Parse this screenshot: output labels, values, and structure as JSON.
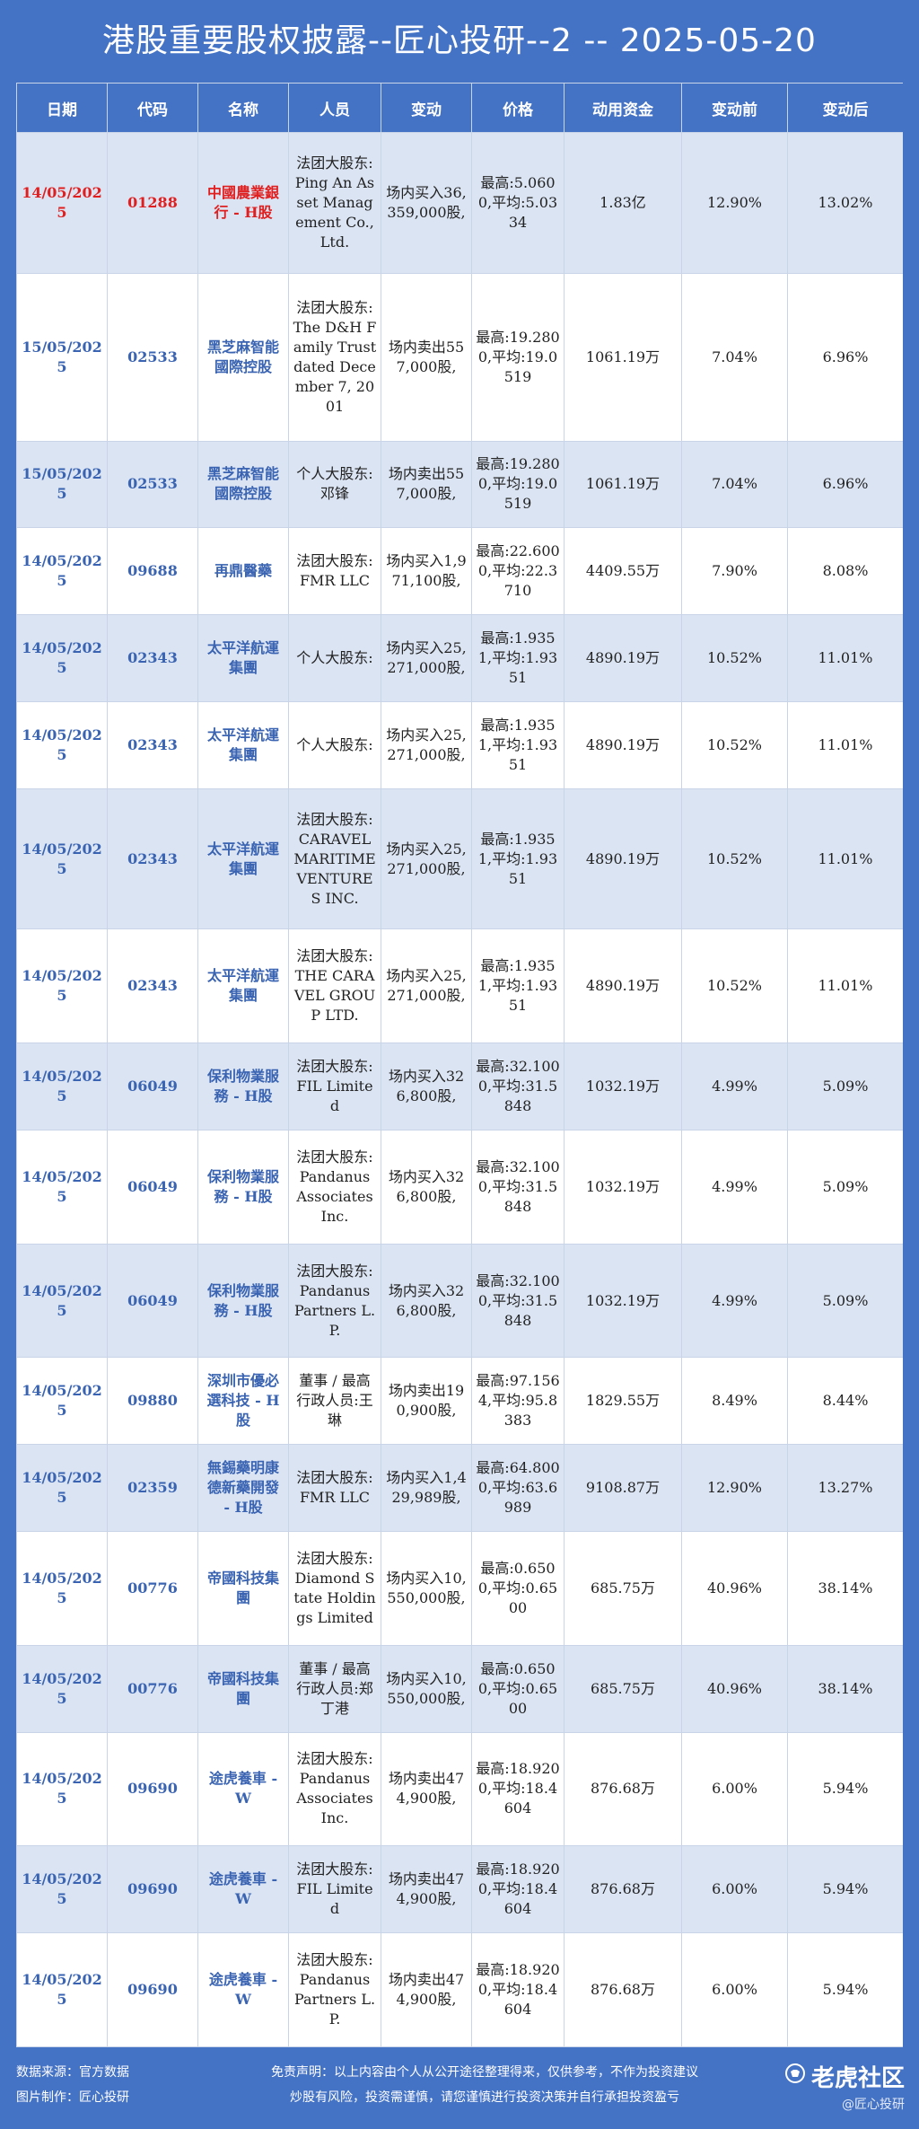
{
  "title": "港股重要股权披露--匠心投研--2 -- 2025-05-20",
  "headers": [
    "日期",
    "代码",
    "名称",
    "人员",
    "变动",
    "价格",
    "动用资金",
    "变动前",
    "变动后"
  ],
  "rows": [
    {
      "date": "14/05/2025",
      "code": "01288",
      "name": "中國農業銀行 - H股",
      "person": "法团大股东:Ping An Asset Management Co., Ltd.",
      "change": "场内买入36,359,000股,",
      "price": "最高:5.0600,平均:5.0334",
      "funds": "1.83亿",
      "before": "12.90%",
      "after": "13.02%",
      "highlight": true
    },
    {
      "date": "15/05/2025",
      "code": "02533",
      "name": "黑芝麻智能國際控股",
      "person": "法团大股东:The D&H Family Trust dated December 7, 2001",
      "change": "场内卖出557,000股,",
      "price": "最高:19.2800,平均:19.0519",
      "funds": "1061.19万",
      "before": "7.04%",
      "after": "6.96%"
    },
    {
      "date": "15/05/2025",
      "code": "02533",
      "name": "黑芝麻智能國際控股",
      "person": "个人大股东:邓锋",
      "change": "场内卖出557,000股,",
      "price": "最高:19.2800,平均:19.0519",
      "funds": "1061.19万",
      "before": "7.04%",
      "after": "6.96%"
    },
    {
      "date": "14/05/2025",
      "code": "09688",
      "name": "再鼎醫藥",
      "person": "法团大股东:FMR LLC",
      "change": "场内买入1,971,100股,",
      "price": "最高:22.6000,平均:22.3710",
      "funds": "4409.55万",
      "before": "7.90%",
      "after": "8.08%"
    },
    {
      "date": "14/05/2025",
      "code": "02343",
      "name": "太平洋航運集團",
      "person": "个人大股东:",
      "change": "场内买入25,271,000股,",
      "price": "最高:1.9351,平均:1.9351",
      "funds": "4890.19万",
      "before": "10.52%",
      "after": "11.01%"
    },
    {
      "date": "14/05/2025",
      "code": "02343",
      "name": "太平洋航運集團",
      "person": "个人大股东:",
      "change": "场内买入25,271,000股,",
      "price": "最高:1.9351,平均:1.9351",
      "funds": "4890.19万",
      "before": "10.52%",
      "after": "11.01%"
    },
    {
      "date": "14/05/2025",
      "code": "02343",
      "name": "太平洋航運集團",
      "person": "法团大股东:CARAVEL MARITIME VENTURES INC.",
      "change": "场内买入25,271,000股,",
      "price": "最高:1.9351,平均:1.9351",
      "funds": "4890.19万",
      "before": "10.52%",
      "after": "11.01%"
    },
    {
      "date": "14/05/2025",
      "code": "02343",
      "name": "太平洋航運集團",
      "person": "法团大股东:THE CARAVEL GROUP LTD.",
      "change": "场内买入25,271,000股,",
      "price": "最高:1.9351,平均:1.9351",
      "funds": "4890.19万",
      "before": "10.52%",
      "after": "11.01%"
    },
    {
      "date": "14/05/2025",
      "code": "06049",
      "name": "保利物業服務 - H股",
      "person": "法团大股东:FIL Limited",
      "change": "场内买入326,800股,",
      "price": "最高:32.1000,平均:31.5848",
      "funds": "1032.19万",
      "before": "4.99%",
      "after": "5.09%"
    },
    {
      "date": "14/05/2025",
      "code": "06049",
      "name": "保利物業服務 - H股",
      "person": "法团大股东:Pandanus Associates Inc.",
      "change": "场内买入326,800股,",
      "price": "最高:32.1000,平均:31.5848",
      "funds": "1032.19万",
      "before": "4.99%",
      "after": "5.09%"
    },
    {
      "date": "14/05/2025",
      "code": "06049",
      "name": "保利物業服務 - H股",
      "person": "法团大股东:Pandanus Partners L.P.",
      "change": "场内买入326,800股,",
      "price": "最高:32.1000,平均:31.5848",
      "funds": "1032.19万",
      "before": "4.99%",
      "after": "5.09%"
    },
    {
      "date": "14/05/2025",
      "code": "09880",
      "name": "深圳市優必選科技 - H股",
      "person": "董事 / 最高行政人员:王琳",
      "change": "场内卖出190,900股,",
      "price": "最高:97.1564,平均:95.8383",
      "funds": "1829.55万",
      "before": "8.49%",
      "after": "8.44%"
    },
    {
      "date": "14/05/2025",
      "code": "02359",
      "name": "無錫藥明康德新藥開發 - H股",
      "person": "法团大股东:FMR LLC",
      "change": "场内买入1,429,989股,",
      "price": "最高:64.8000,平均:63.6989",
      "funds": "9108.87万",
      "before": "12.90%",
      "after": "13.27%"
    },
    {
      "date": "14/05/2025",
      "code": "00776",
      "name": "帝國科技集團",
      "person": "法团大股东:Diamond State Holdings Limited",
      "change": "场内买入10,550,000股,",
      "price": "最高:0.6500,平均:0.6500",
      "funds": "685.75万",
      "before": "40.96%",
      "after": "38.14%"
    },
    {
      "date": "14/05/2025",
      "code": "00776",
      "name": "帝國科技集團",
      "person": "董事 / 最高行政人员:郑丁港",
      "change": "场内买入10,550,000股,",
      "price": "最高:0.6500,平均:0.6500",
      "funds": "685.75万",
      "before": "40.96%",
      "after": "38.14%"
    },
    {
      "date": "14/05/2025",
      "code": "09690",
      "name": "途虎養車 - W",
      "person": "法团大股东:Pandanus Associates Inc.",
      "change": "场内卖出474,900股,",
      "price": "最高:18.9200,平均:18.4604",
      "funds": "876.68万",
      "before": "6.00%",
      "after": "5.94%"
    },
    {
      "date": "14/05/2025",
      "code": "09690",
      "name": "途虎養車 - W",
      "person": "法团大股东:FIL Limited",
      "change": "场内卖出474,900股,",
      "price": "最高:18.9200,平均:18.4604",
      "funds": "876.68万",
      "before": "6.00%",
      "after": "5.94%"
    },
    {
      "date": "14/05/2025",
      "code": "09690",
      "name": "途虎養車 - W",
      "person": "法团大股东:Pandanus Partners L.P.",
      "change": "场内卖出474,900股,",
      "price": "最高:18.9200,平均:18.4604",
      "funds": "876.68万",
      "before": "6.00%",
      "after": "5.94%"
    }
  ],
  "footer": {
    "source": "数据来源：官方数据",
    "maker": "图片制作：匠心投研",
    "disclaimer1": "免责声明：以上内容由个人从公开途径整理得来，仅供参考，不作为投资建议",
    "disclaimer2": "炒股有风险，投资需谨慎，请您谨慎进行投资决策并自行承担投资盈亏",
    "brand": "老虎社区",
    "handle": "@匠心投研"
  },
  "colors": {
    "background": "#4472c4",
    "header": "#4472c4",
    "row_alt": "#dbe4f3",
    "link_text": "#3a64b2",
    "highlight_text": "#e02020"
  }
}
